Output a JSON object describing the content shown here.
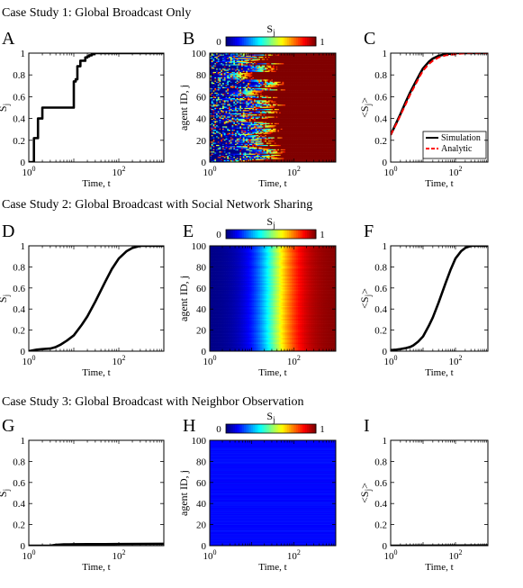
{
  "sections": [
    {
      "title": "Case Study 1: Global Broadcast Only"
    },
    {
      "title": "Case Study 2: Global Broadcast with Social Network Sharing"
    },
    {
      "title": "Case Study 3: Global Broadcast with Neighbor Observation"
    }
  ],
  "colorbar": {
    "label": "S",
    "sub": "j",
    "min_label": "0",
    "max_label": "1"
  },
  "colors": {
    "line": "#000000",
    "analytic": "#ff0000",
    "heat_low": "#00008f",
    "heat_high": "#800000"
  },
  "chart_data": [
    {
      "id": "A",
      "panel_letter": "A",
      "type": "line",
      "xscale": "log",
      "xlim": [
        1,
        1000
      ],
      "ylim": [
        0,
        1
      ],
      "xlabel": "Time, t",
      "ylabel": "S",
      "ylabel_sub": "j",
      "xticks": [
        {
          "v": 1,
          "base": "10",
          "exp": "0"
        },
        {
          "v": 100,
          "base": "10",
          "exp": "2"
        }
      ],
      "yticks": [
        "0",
        "0.2",
        "0.4",
        "0.6",
        "0.8",
        "1"
      ],
      "series": [
        {
          "x": [
            1,
            1.3,
            1.6,
            2,
            3,
            4,
            5,
            6,
            7,
            8,
            9,
            10,
            11,
            12,
            13,
            14,
            16,
            18,
            20,
            22,
            25,
            28,
            32,
            40,
            60,
            100,
            1000
          ],
          "y": [
            0,
            0.22,
            0.4,
            0.5,
            0.5,
            0.5,
            0.5,
            0.5,
            0.5,
            0.5,
            0.5,
            0.74,
            0.76,
            0.88,
            0.88,
            0.93,
            0.93,
            0.96,
            0.97,
            0.98,
            0.99,
            1,
            1,
            1,
            1,
            1,
            1
          ],
          "step": true,
          "color": "#000000"
        }
      ]
    },
    {
      "id": "B",
      "panel_letter": "B",
      "type": "heatmap",
      "variant": "fluctuating",
      "xscale": "log",
      "xlim": [
        1,
        1000
      ],
      "ylim": [
        0,
        100
      ],
      "xlabel": "Time, t",
      "ylabel": "agent ID, j",
      "xticks": [
        {
          "v": 1,
          "base": "10",
          "exp": "0"
        },
        {
          "v": 100,
          "base": "10",
          "exp": "2"
        }
      ],
      "yticks": [
        "0",
        "20",
        "40",
        "60",
        "80",
        "100"
      ],
      "rows": 100,
      "mid_t": 12,
      "show_colorbar": true
    },
    {
      "id": "C",
      "panel_letter": "C",
      "type": "line",
      "xscale": "log",
      "xlim": [
        1,
        1000
      ],
      "ylim": [
        0,
        1
      ],
      "xlabel": "Time, t",
      "ylabel": "<S",
      "ylabel_sub": "j",
      "ylabel_end": ">",
      "xticks": [
        {
          "v": 1,
          "base": "10",
          "exp": "0"
        },
        {
          "v": 100,
          "base": "10",
          "exp": "2"
        }
      ],
      "yticks": [
        "0",
        "0.2",
        "0.4",
        "0.6",
        "0.8",
        "1"
      ],
      "legend": {
        "position": "bottom-right",
        "entries": [
          "Simulation",
          "Analytic"
        ]
      },
      "series": [
        {
          "name": "Simulation",
          "x": [
            1,
            1.5,
            2,
            3,
            4,
            6,
            8,
            10,
            15,
            20,
            30,
            50,
            100,
            200,
            1000
          ],
          "y": [
            0.25,
            0.36,
            0.44,
            0.56,
            0.64,
            0.74,
            0.81,
            0.86,
            0.92,
            0.95,
            0.975,
            0.99,
            1,
            1,
            1
          ],
          "color": "#000000"
        },
        {
          "name": "Analytic",
          "x": [
            1,
            1.5,
            2,
            3,
            4,
            6,
            8,
            10,
            15,
            20,
            30,
            50,
            100,
            200,
            1000
          ],
          "y": [
            0.25,
            0.35,
            0.43,
            0.54,
            0.62,
            0.72,
            0.79,
            0.84,
            0.9,
            0.93,
            0.96,
            0.98,
            0.99,
            1,
            1
          ],
          "color": "#ff0000",
          "dashed": true
        }
      ]
    },
    {
      "id": "D",
      "panel_letter": "D",
      "type": "line",
      "xscale": "log",
      "xlim": [
        1,
        1000
      ],
      "ylim": [
        0,
        1
      ],
      "xlabel": "Time, t",
      "ylabel": "S",
      "ylabel_sub": "j",
      "xticks": [
        {
          "v": 1,
          "base": "10",
          "exp": "0"
        },
        {
          "v": 100,
          "base": "10",
          "exp": "2"
        }
      ],
      "yticks": [
        "0",
        "0.2",
        "0.4",
        "0.6",
        "0.8",
        "1"
      ],
      "series": [
        {
          "x": [
            1,
            1.5,
            2,
            3,
            4,
            5,
            7,
            10,
            15,
            20,
            30,
            50,
            70,
            100,
            150,
            200,
            300,
            500,
            1000
          ],
          "y": [
            0,
            0.015,
            0.02,
            0.025,
            0.04,
            0.06,
            0.1,
            0.15,
            0.25,
            0.33,
            0.47,
            0.66,
            0.78,
            0.88,
            0.95,
            0.98,
            1,
            1,
            1
          ],
          "color": "#000000"
        }
      ]
    },
    {
      "id": "E",
      "panel_letter": "E",
      "type": "heatmap",
      "variant": "smooth",
      "xscale": "log",
      "xlim": [
        1,
        1000
      ],
      "ylim": [
        0,
        100
      ],
      "xlabel": "Time, t",
      "ylabel": "agent ID, j",
      "xticks": [
        {
          "v": 1,
          "base": "10",
          "exp": "0"
        },
        {
          "v": 100,
          "base": "10",
          "exp": "2"
        }
      ],
      "yticks": [
        "0",
        "20",
        "40",
        "60",
        "80",
        "100"
      ],
      "rows": 100,
      "mid_t": 35,
      "show_colorbar": true
    },
    {
      "id": "F",
      "panel_letter": "F",
      "type": "line",
      "xscale": "log",
      "xlim": [
        1,
        1000
      ],
      "ylim": [
        0,
        1
      ],
      "xlabel": "Time, t",
      "ylabel": "<S",
      "ylabel_sub": "j",
      "ylabel_end": ">",
      "xticks": [
        {
          "v": 1,
          "base": "10",
          "exp": "0"
        },
        {
          "v": 100,
          "base": "10",
          "exp": "2"
        }
      ],
      "yticks": [
        "0",
        "0.2",
        "0.4",
        "0.6",
        "0.8",
        "1"
      ],
      "series": [
        {
          "x": [
            1,
            1.5,
            2,
            3,
            4,
            5,
            7,
            10,
            15,
            20,
            30,
            50,
            70,
            100,
            150,
            200,
            300,
            500,
            1000
          ],
          "y": [
            0.01,
            0.015,
            0.02,
            0.03,
            0.04,
            0.055,
            0.09,
            0.14,
            0.24,
            0.32,
            0.46,
            0.65,
            0.77,
            0.88,
            0.95,
            0.98,
            1,
            1,
            1
          ],
          "color": "#000000"
        }
      ]
    },
    {
      "id": "G",
      "panel_letter": "G",
      "type": "line",
      "xscale": "log",
      "xlim": [
        1,
        1000
      ],
      "ylim": [
        0,
        1
      ],
      "xlabel": "Time, t",
      "ylabel": "S",
      "ylabel_sub": "j",
      "xticks": [
        {
          "v": 1,
          "base": "10",
          "exp": "0"
        },
        {
          "v": 100,
          "base": "10",
          "exp": "2"
        }
      ],
      "yticks": [
        "0",
        "0.2",
        "0.4",
        "0.6",
        "0.8",
        "1"
      ],
      "series": [
        {
          "x": [
            1,
            2,
            3,
            4,
            5,
            6,
            8,
            10,
            20,
            50,
            100,
            1000
          ],
          "y": [
            0,
            0,
            0,
            0.008,
            0.01,
            0.012,
            0.012,
            0.013,
            0.014,
            0.015,
            0.016,
            0.018
          ],
          "color": "#000000"
        }
      ]
    },
    {
      "id": "H",
      "panel_letter": "H",
      "type": "heatmap",
      "variant": "flat",
      "xscale": "log",
      "xlim": [
        1,
        1000
      ],
      "ylim": [
        0,
        100
      ],
      "xlabel": "Time, t",
      "ylabel": "agent ID, j",
      "xticks": [
        {
          "v": 1,
          "base": "10",
          "exp": "0"
        },
        {
          "v": 100,
          "base": "10",
          "exp": "2"
        }
      ],
      "yticks": [
        "0",
        "20",
        "40",
        "60",
        "80",
        "100"
      ],
      "rows": 100,
      "show_colorbar": true
    },
    {
      "id": "I",
      "panel_letter": "I",
      "type": "line",
      "xscale": "log",
      "xlim": [
        1,
        1000
      ],
      "ylim": [
        0,
        1
      ],
      "xlabel": "Time, t",
      "ylabel": "<S",
      "ylabel_sub": "j",
      "ylabel_end": ">",
      "xticks": [
        {
          "v": 1,
          "base": "10",
          "exp": "0"
        },
        {
          "v": 100,
          "base": "10",
          "exp": "2"
        }
      ],
      "yticks": [
        "0",
        "0.2",
        "0.4",
        "0.6",
        "0.8",
        "1"
      ],
      "series": [
        {
          "x": [
            1,
            10,
            100,
            1000
          ],
          "y": [
            0,
            0.001,
            0.002,
            0.003
          ],
          "color": "#000000"
        }
      ]
    }
  ]
}
